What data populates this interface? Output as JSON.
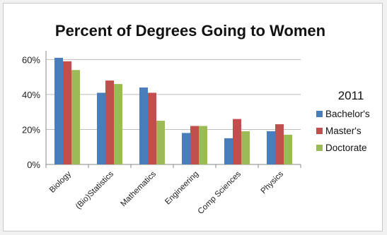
{
  "chart_data": {
    "type": "bar",
    "title": "Percent of Degrees Going to Women",
    "xlabel": "",
    "ylabel": "",
    "categories": [
      "Biology",
      "(Bio)Statistics",
      "Mathematics",
      "Engineering",
      "Comp Sciences",
      "Physics"
    ],
    "series": [
      {
        "name": "Bachelor's",
        "color": "#4a7ebb",
        "values": [
          61,
          41,
          44,
          18,
          15,
          19
        ]
      },
      {
        "name": "Master's",
        "color": "#c0504d",
        "values": [
          59,
          48,
          41,
          22,
          26,
          23
        ]
      },
      {
        "name": "Doctorate",
        "color": "#9bbb59",
        "values": [
          54,
          46,
          25,
          22,
          19,
          17
        ]
      }
    ],
    "ylim": [
      0,
      65
    ],
    "yticks": [
      0,
      20,
      40,
      60
    ],
    "ytick_labels": [
      "0%",
      "20%",
      "40%",
      "60%"
    ],
    "grid": true,
    "legend": {
      "title": "2011",
      "position": "right"
    }
  }
}
